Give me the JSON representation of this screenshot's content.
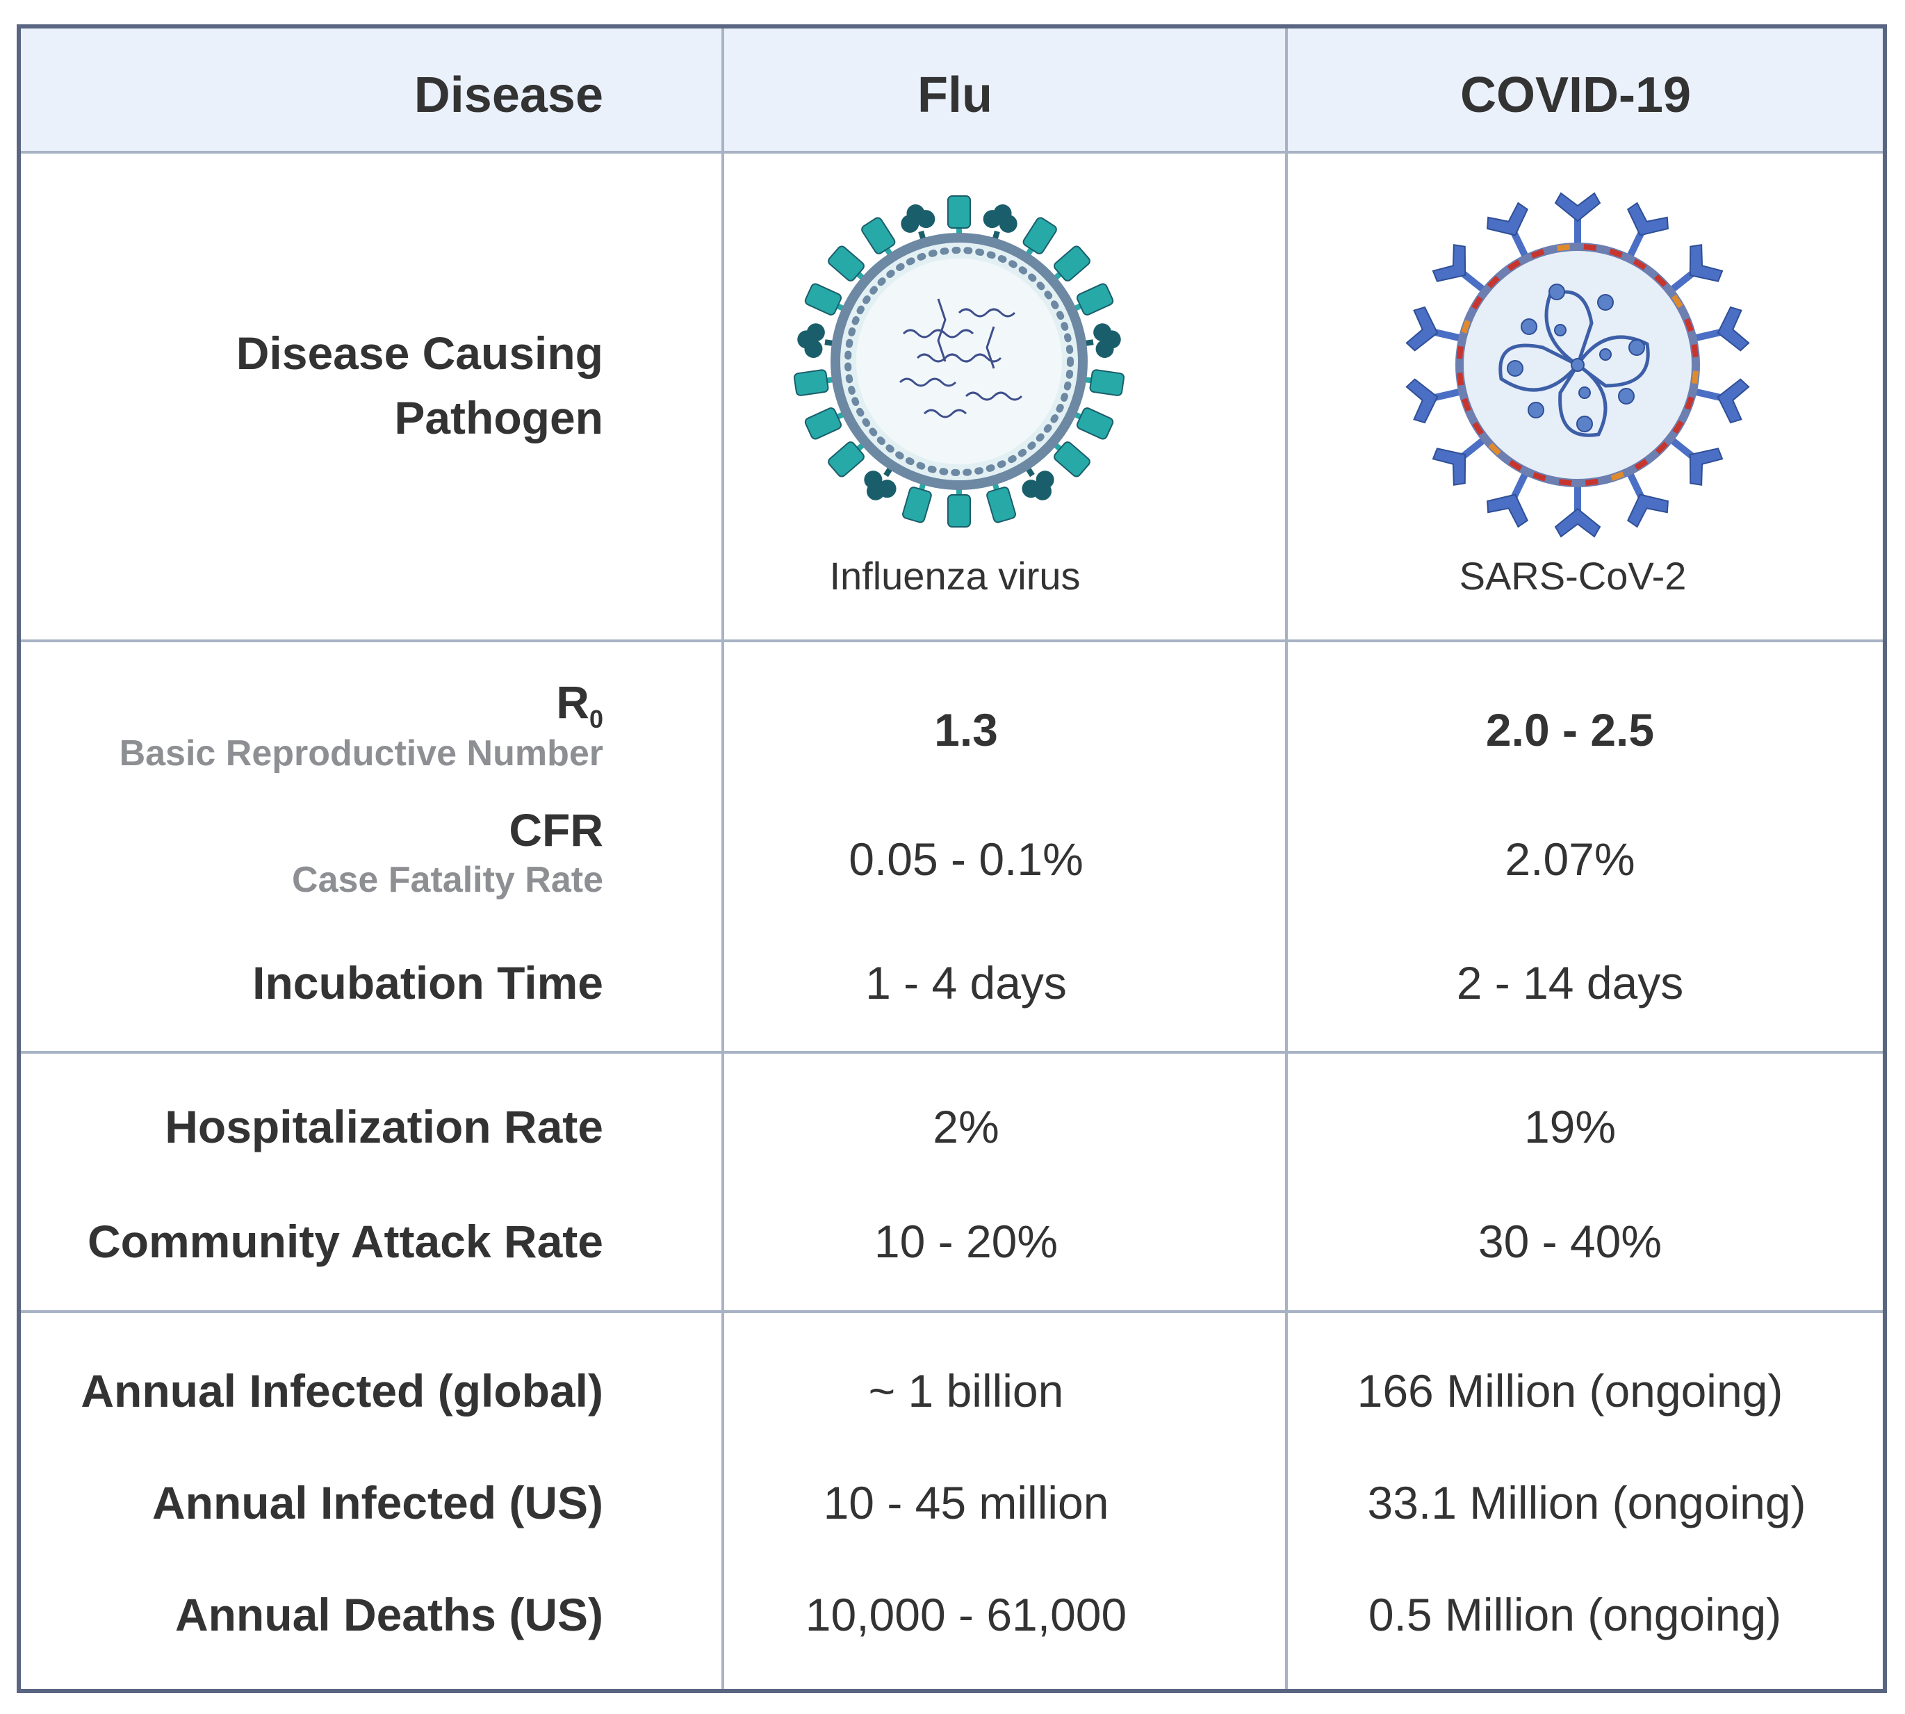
{
  "header": {
    "disease": "Disease",
    "flu": "Flu",
    "covid": "COVID-19"
  },
  "pathogen": {
    "label_line1": "Disease Causing",
    "label_line2": "Pathogen",
    "flu_caption": "Influenza virus",
    "covid_caption": "SARS-CoV-2"
  },
  "r0": {
    "label": "R",
    "label_sub": "0",
    "desc": "Basic Reproductive Number",
    "flu": "1.3",
    "covid": "2.0 - 2.5"
  },
  "cfr": {
    "label": "CFR",
    "desc": "Case Fatality Rate",
    "flu": "0.05 - 0.1%",
    "covid": "2.07%"
  },
  "incubation": {
    "label": "Incubation Time",
    "flu": "1 - 4 days",
    "covid": "2 - 14 days"
  },
  "hospitalization": {
    "label": "Hospitalization Rate",
    "flu": "2%",
    "covid": "19%"
  },
  "attack": {
    "label": "Community Attack Rate",
    "flu": "10 - 20%",
    "covid": "30 - 40%"
  },
  "infected_global": {
    "label": "Annual Infected (global)",
    "flu": "~ 1 billion",
    "covid": "166 Million (ongoing)"
  },
  "infected_us": {
    "label": "Annual Infected (US)",
    "flu": "10 - 45 million",
    "covid": "33.1 Million (ongoing)"
  },
  "deaths_us": {
    "label": "Annual Deaths (US)",
    "flu": "10,000 - 61,000",
    "covid": "0.5 Million (ongoing)"
  },
  "colors": {
    "frame": "#5a6681",
    "header_bg": "#eaf1fa",
    "flu_teal": "#27a9a8",
    "flu_dark": "#1b5e6b",
    "covid_blue": "#4a6fc4",
    "covid_red": "#c8352e"
  }
}
